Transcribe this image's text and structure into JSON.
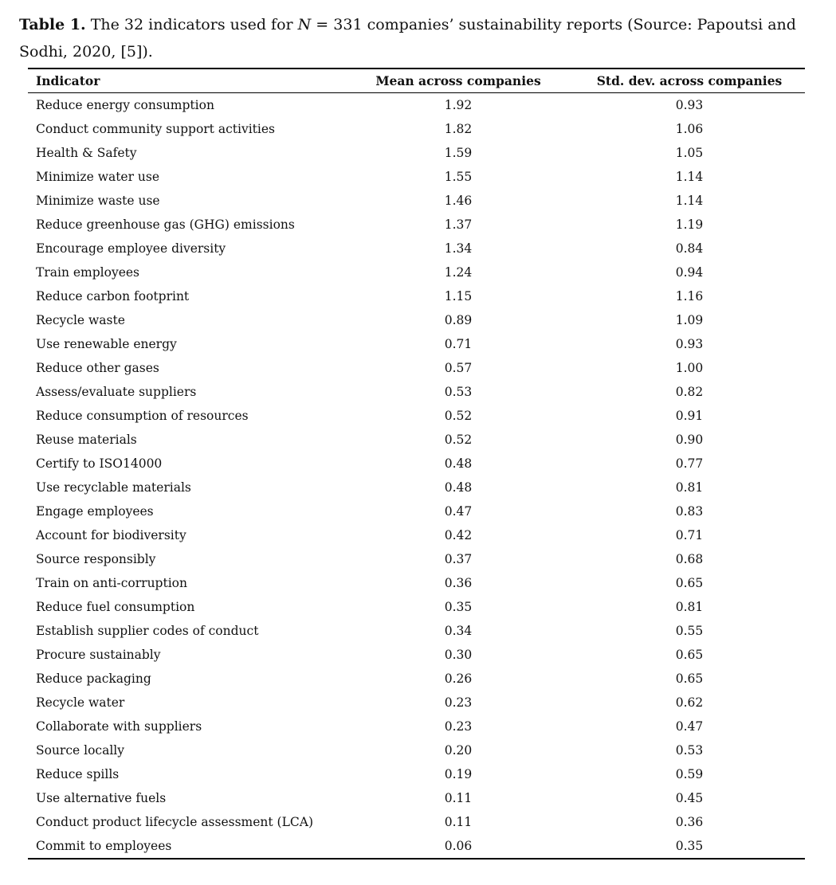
{
  "caption": {
    "label": "Table 1.",
    "text_before_n": " The 32 indicators used for ",
    "n_symbol": "N",
    "text_after_n": " = 331 companies’ sustainability reports (Source: Papoutsi and Sodhi, 2020, [5])."
  },
  "table": {
    "headers": [
      "Indicator",
      "Mean across companies",
      "Std. dev. across companies"
    ],
    "rows": [
      [
        "Reduce energy consumption",
        "1.92",
        "0.93"
      ],
      [
        "Conduct community support activities",
        "1.82",
        "1.06"
      ],
      [
        "Health & Safety",
        "1.59",
        "1.05"
      ],
      [
        "Minimize water use",
        "1.55",
        "1.14"
      ],
      [
        "Minimize waste use",
        "1.46",
        "1.14"
      ],
      [
        "Reduce greenhouse gas (GHG) emissions",
        "1.37",
        "1.19"
      ],
      [
        "Encourage employee diversity",
        "1.34",
        "0.84"
      ],
      [
        "Train employees",
        "1.24",
        "0.94"
      ],
      [
        "Reduce carbon footprint",
        "1.15",
        "1.16"
      ],
      [
        "Recycle waste",
        "0.89",
        "1.09"
      ],
      [
        "Use renewable energy",
        "0.71",
        "0.93"
      ],
      [
        "Reduce other gases",
        "0.57",
        "1.00"
      ],
      [
        "Assess/evaluate suppliers",
        "0.53",
        "0.82"
      ],
      [
        "Reduce consumption of resources",
        "0.52",
        "0.91"
      ],
      [
        "Reuse materials",
        "0.52",
        "0.90"
      ],
      [
        "Certify to ISO14000",
        "0.48",
        "0.77"
      ],
      [
        "Use recyclable materials",
        "0.48",
        "0.81"
      ],
      [
        "Engage employees",
        "0.47",
        "0.83"
      ],
      [
        "Account for biodiversity",
        "0.42",
        "0.71"
      ],
      [
        "Source responsibly",
        "0.37",
        "0.68"
      ],
      [
        "Train on anti-corruption",
        "0.36",
        "0.65"
      ],
      [
        "Reduce fuel consumption",
        "0.35",
        "0.81"
      ],
      [
        "Establish supplier codes of conduct",
        "0.34",
        "0.55"
      ],
      [
        "Procure sustainably",
        "0.30",
        "0.65"
      ],
      [
        "Reduce packaging",
        "0.26",
        "0.65"
      ],
      [
        "Recycle water",
        "0.23",
        "0.62"
      ],
      [
        "Collaborate with suppliers",
        "0.23",
        "0.47"
      ],
      [
        "Source locally",
        "0.20",
        "0.53"
      ],
      [
        "Reduce spills",
        "0.19",
        "0.59"
      ],
      [
        "Use alternative fuels",
        "0.11",
        "0.45"
      ],
      [
        "Conduct product lifecycle assessment (LCA)",
        "0.11",
        "0.36"
      ],
      [
        "Commit to employees",
        "0.06",
        "0.35"
      ]
    ]
  }
}
